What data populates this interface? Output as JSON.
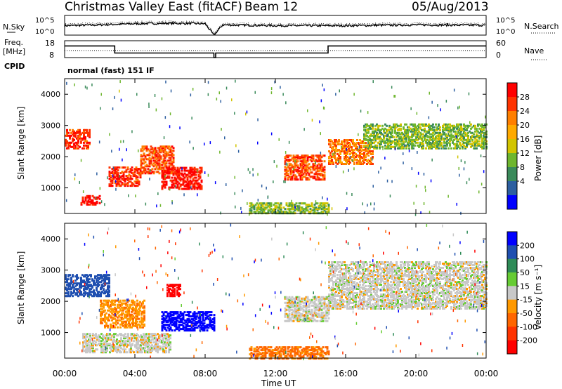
{
  "header": {
    "station": "Christmas Valley East (fitACF)",
    "beam": "Beam 12",
    "date": "05/Aug/2013"
  },
  "noise_panel": {
    "left_label": "N.Sky",
    "left_ticks": [
      "10^5",
      "10^0"
    ],
    "right_ticks": [
      "10^5",
      "10^0"
    ],
    "right_label": "N.Search"
  },
  "freq_panel": {
    "left_label_line1": "Freq.",
    "left_label_line2": "[MHz]",
    "left_ticks": [
      "18",
      "8"
    ],
    "right_ticks": [
      "60",
      "0"
    ],
    "right_label": "Nave"
  },
  "cpid": {
    "label": "CPID",
    "value": "normal (fast) 151 IF"
  },
  "x_axis": {
    "label": "Time UT",
    "ticks": [
      "00:00",
      "04:00",
      "08:00",
      "12:00",
      "16:00",
      "20:00",
      "00:00"
    ]
  },
  "power_colorbar": {
    "label": "Power [dB]",
    "ticks": [
      "28",
      "24",
      "20",
      "16",
      "12",
      "8",
      "4"
    ],
    "colors": [
      "#ff0000",
      "#ff3300",
      "#ff7f00",
      "#ffaa00",
      "#d2c400",
      "#6eb62e",
      "#3a8a5a",
      "#2d5fa0",
      "#0000ff"
    ]
  },
  "velocity_colorbar": {
    "label": "Velocity [m s⁻¹]",
    "ticks": [
      "200",
      "100",
      "50",
      "15",
      "-15",
      "-50",
      "-100",
      "-200"
    ],
    "colors": [
      "#0000ff",
      "#1f4fb0",
      "#2e8b57",
      "#66cc33",
      "#c8c8c8",
      "#ff9900",
      "#ff6600",
      "#ff3300",
      "#ff0000"
    ]
  },
  "chart_data": [
    {
      "type": "line",
      "panel": "noise",
      "xlabel": "",
      "ylabel": "N.Sky",
      "y_scale": "log",
      "ylim": [
        "10^0",
        "10^5"
      ],
      "xlim": [
        "00:00",
        "24:00"
      ],
      "series": [
        {
          "x_hours": [
            0,
            2,
            4,
            6,
            8,
            8.5,
            9,
            12,
            16,
            20,
            24
          ],
          "values_log10": [
            2.4,
            2.6,
            2.9,
            3.0,
            2.9,
            0,
            2.6,
            2.4,
            2.4,
            2.6,
            2.5
          ]
        }
      ]
    },
    {
      "type": "line",
      "panel": "frequency",
      "ylabel": "Freq. [MHz]",
      "ylim": [
        8,
        18
      ],
      "xlim": [
        "00:00",
        "24:00"
      ],
      "series": [
        {
          "x_hours": [
            0,
            2.85,
            2.85,
            8.5,
            8.5,
            8.6,
            8.6,
            15.0,
            15.0,
            24
          ],
          "values": [
            14.9,
            14.9,
            10.7,
            10.7,
            8.0,
            8.0,
            10.7,
            10.7,
            14.9,
            14.9
          ]
        }
      ]
    },
    {
      "type": "heatmap",
      "panel": "power",
      "title": "Power [dB]",
      "ylabel": "Slant Range [km]",
      "xlabel": "Time UT",
      "ylim": [
        180,
        4500
      ],
      "xlim": [
        "00:00",
        "24:00"
      ],
      "yticks": [
        1000,
        2000,
        3000,
        4000
      ],
      "clim": [
        0,
        30
      ],
      "echo_regions": [
        {
          "t0": 0.0,
          "t1": 1.4,
          "r0": 2300,
          "r1": 2900,
          "db": 26
        },
        {
          "t0": 0.9,
          "t1": 2.0,
          "r0": 500,
          "r1": 800,
          "db": 28
        },
        {
          "t0": 2.5,
          "t1": 4.3,
          "r0": 1100,
          "r1": 1700,
          "db": 26
        },
        {
          "t0": 4.3,
          "t1": 6.2,
          "r0": 1500,
          "r1": 2400,
          "db": 24
        },
        {
          "t0": 5.5,
          "t1": 7.8,
          "r0": 1000,
          "r1": 1700,
          "db": 28
        },
        {
          "t0": 10.5,
          "t1": 15.0,
          "r0": 220,
          "r1": 550,
          "db": 12
        },
        {
          "t0": 12.5,
          "t1": 14.8,
          "r0": 1300,
          "r1": 2100,
          "db": 24
        },
        {
          "t0": 15.0,
          "t1": 17.5,
          "r0": 1800,
          "r1": 2600,
          "db": 22
        },
        {
          "t0": 17.0,
          "t1": 24.0,
          "r0": 2300,
          "r1": 3100,
          "db": 12
        }
      ]
    },
    {
      "type": "heatmap",
      "panel": "velocity",
      "title": "Velocity [m s⁻¹]",
      "ylabel": "Slant Range [km]",
      "xlabel": "Time UT",
      "ylim": [
        180,
        4500
      ],
      "xlim": [
        "00:00",
        "24:00"
      ],
      "yticks": [
        1000,
        2000,
        3000,
        4000
      ],
      "clim": [
        -250,
        250
      ],
      "echo_regions": [
        {
          "t0": 0.0,
          "t1": 2.5,
          "r0": 2200,
          "r1": 2900,
          "vel": 180
        },
        {
          "t0": 2.0,
          "t1": 4.5,
          "r0": 1200,
          "r1": 2100,
          "vel": -40
        },
        {
          "t0": 5.5,
          "t1": 8.5,
          "r0": 1100,
          "r1": 1700,
          "vel": 230
        },
        {
          "t0": 5.8,
          "t1": 6.6,
          "r0": 2200,
          "r1": 2600,
          "vel": -220
        },
        {
          "t0": 1.0,
          "t1": 6.0,
          "r0": 400,
          "r1": 1000,
          "vel": 0
        },
        {
          "t0": 10.5,
          "t1": 15.0,
          "r0": 200,
          "r1": 600,
          "vel": -60
        },
        {
          "t0": 12.5,
          "t1": 15.0,
          "r0": 1400,
          "r1": 2200,
          "vel": 0
        },
        {
          "t0": 15.0,
          "t1": 24.0,
          "r0": 1800,
          "r1": 3300,
          "vel": 0
        }
      ]
    }
  ]
}
